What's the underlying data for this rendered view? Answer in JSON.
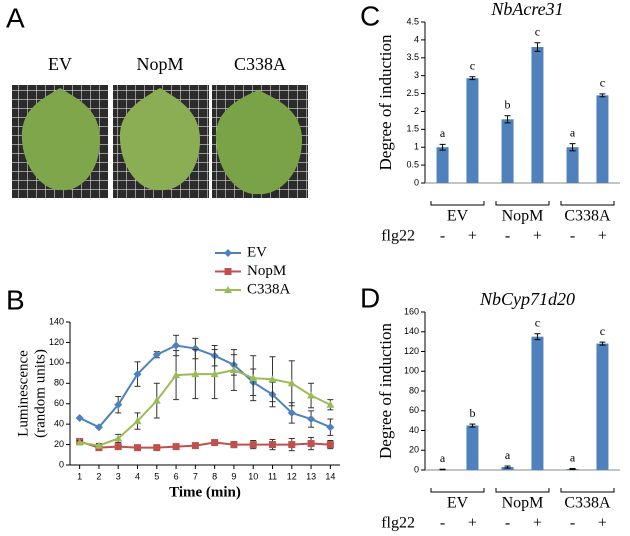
{
  "panel_labels": [
    "A",
    "B",
    "C",
    "D"
  ],
  "photo": {
    "labels": [
      "EV",
      "NopM",
      "C338A"
    ]
  },
  "chart_data": [
    {
      "type": "line",
      "xlabel": "Time (min)",
      "ylabel": [
        "Luminescence",
        "(random units)"
      ],
      "x": [
        1,
        2,
        3,
        4,
        5,
        6,
        7,
        8,
        9,
        10,
        11,
        12,
        13,
        14
      ],
      "xlim": [
        0.5,
        14.5
      ],
      "xticks": [
        1,
        2,
        3,
        4,
        5,
        6,
        7,
        8,
        9,
        10,
        11,
        12,
        13,
        14
      ],
      "ylim": [
        0,
        140
      ],
      "yticks": [
        0,
        20,
        40,
        60,
        80,
        100,
        120,
        140
      ],
      "legend": "upper right",
      "series": [
        {
          "name": "EV",
          "color": "#4f81bd",
          "marker": "diamond",
          "values": [
            46,
            37,
            59,
            89,
            108,
            117,
            114,
            107,
            98,
            81,
            69,
            51,
            45,
            37
          ],
          "errors": [
            0,
            0,
            8,
            12,
            3,
            10,
            10,
            10,
            10,
            13,
            12,
            10,
            8,
            8
          ]
        },
        {
          "name": "NopM",
          "color": "#c0504d",
          "marker": "square",
          "values": [
            23,
            17,
            18,
            17,
            17,
            18,
            19,
            22,
            20,
            20,
            20,
            20,
            21,
            20
          ],
          "errors": [
            2,
            2,
            2,
            1,
            1,
            1,
            1,
            2,
            3,
            4,
            5,
            6,
            6,
            4
          ]
        },
        {
          "name": "C338A",
          "color": "#9bbb59",
          "marker": "triangle",
          "values": [
            22,
            19,
            26,
            43,
            63,
            88,
            89,
            89,
            93,
            85,
            84,
            80,
            68,
            59
          ],
          "errors": [
            2,
            2,
            4,
            8,
            17,
            24,
            24,
            24,
            20,
            22,
            22,
            22,
            12,
            5
          ]
        }
      ]
    },
    {
      "type": "bar",
      "title": "NbAcre31",
      "ylabel": "Degree of induction",
      "color": "#4f81bd",
      "groups": [
        "EV",
        "NopM",
        "C338A"
      ],
      "treatment_label": "flg22",
      "categories": [
        "-",
        "+",
        "-",
        "+",
        "-",
        "+"
      ],
      "values": [
        1.0,
        2.93,
        1.78,
        3.8,
        1.0,
        2.45
      ],
      "errors": [
        0.08,
        0.04,
        0.1,
        0.12,
        0.1,
        0.04
      ],
      "significance": [
        "a",
        "c",
        "b",
        "c",
        "a",
        "c"
      ],
      "ylim": [
        0,
        4.5
      ],
      "yticks": [
        0,
        0.5,
        1,
        1.5,
        2,
        2.5,
        3,
        3.5,
        4,
        4.5
      ]
    },
    {
      "type": "bar",
      "title": "NbCyp71d20",
      "ylabel": "Degree of induction",
      "color": "#4f81bd",
      "groups": [
        "EV",
        "NopM",
        "C338A"
      ],
      "treatment_label": "flg22",
      "categories": [
        "-",
        "+",
        "-",
        "+",
        "-",
        "+"
      ],
      "values": [
        0.5,
        45,
        3,
        135,
        1,
        128
      ],
      "errors": [
        0.3,
        1.5,
        1,
        3,
        0.5,
        1.5
      ],
      "significance": [
        "a",
        "b",
        "a",
        "c",
        "a",
        "c"
      ],
      "ylim": [
        0,
        160
      ],
      "yticks": [
        0,
        20,
        40,
        60,
        80,
        100,
        120,
        140,
        160
      ]
    }
  ]
}
